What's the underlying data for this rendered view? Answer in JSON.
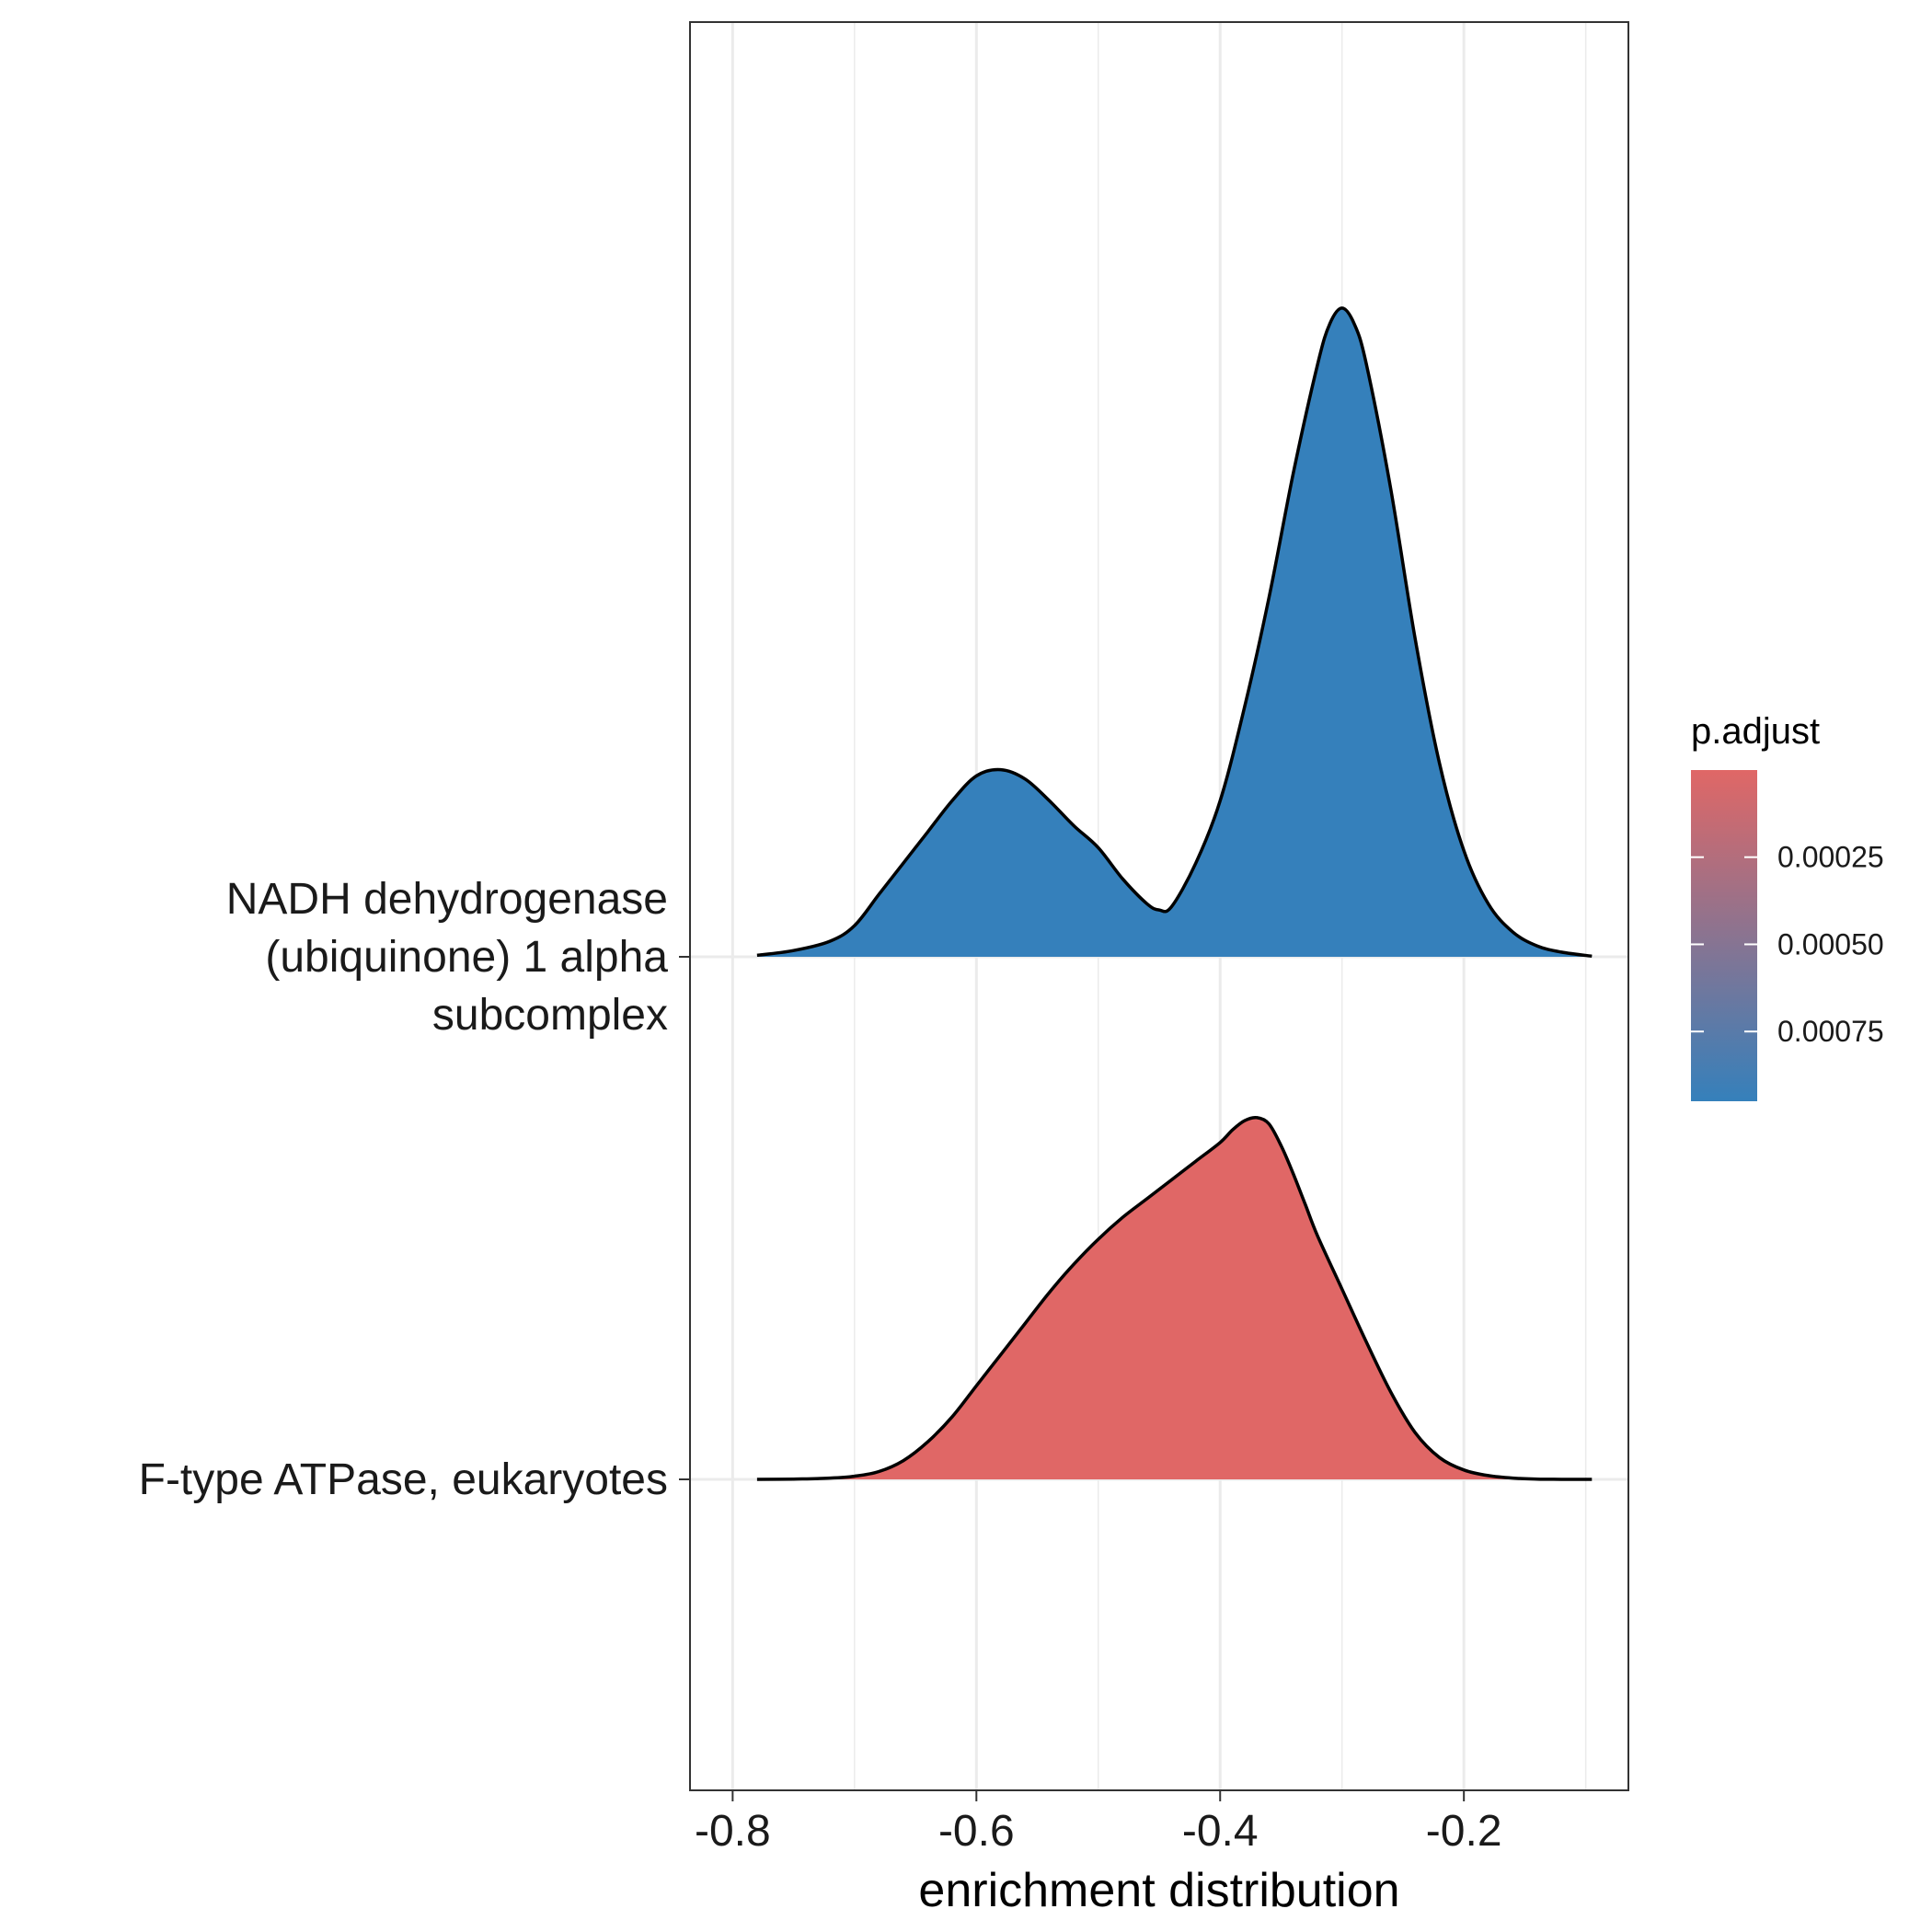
{
  "chart_data": {
    "type": "ridgeline",
    "title": "",
    "xlabel": "enrichment distribution",
    "ylabel": "",
    "xlim": [
      -0.835,
      -0.065
    ],
    "x_ticks": [
      -0.8,
      -0.6,
      -0.4,
      -0.2
    ],
    "x_tick_labels": [
      "-0.8",
      "-0.6",
      "-0.4",
      "-0.2"
    ],
    "x_minor_ticks": [
      -0.7,
      -0.5,
      -0.3,
      -0.1
    ],
    "grid": true,
    "categories": [
      "F-type ATPase, eukaryotes",
      "NADH dehydrogenase (ubiquinone) 1 alpha subcomplex"
    ],
    "category_label_lines": [
      [
        "F-type ATPase, eukaryotes"
      ],
      [
        "NADH dehydrogenase",
        "(ubiquinone) 1 alpha",
        "subcomplex"
      ]
    ],
    "series": [
      {
        "name": "F-type ATPase, eukaryotes",
        "p_adjust": 1e-07,
        "fill": "#E06766",
        "x": [
          -0.78,
          -0.75,
          -0.72,
          -0.7,
          -0.68,
          -0.66,
          -0.64,
          -0.62,
          -0.6,
          -0.58,
          -0.56,
          -0.54,
          -0.52,
          -0.5,
          -0.48,
          -0.46,
          -0.44,
          -0.42,
          -0.4,
          -0.39,
          -0.38,
          -0.37,
          -0.36,
          -0.35,
          -0.34,
          -0.33,
          -0.32,
          -0.3,
          -0.28,
          -0.26,
          -0.24,
          -0.22,
          -0.2,
          -0.18,
          -0.16,
          -0.14,
          -0.12,
          -0.095
        ],
        "density": [
          0.0,
          0.001,
          0.004,
          0.01,
          0.025,
          0.06,
          0.12,
          0.2,
          0.3,
          0.4,
          0.5,
          0.6,
          0.69,
          0.77,
          0.84,
          0.9,
          0.96,
          1.02,
          1.08,
          1.12,
          1.15,
          1.16,
          1.14,
          1.07,
          0.98,
          0.88,
          0.78,
          0.61,
          0.44,
          0.28,
          0.15,
          0.07,
          0.03,
          0.012,
          0.004,
          0.001,
          0.0,
          0.0
        ]
      },
      {
        "name": "NADH dehydrogenase (ubiquinone) 1 alpha subcomplex",
        "p_adjust": 0.00095,
        "fill": "#3580BB",
        "x": [
          -0.78,
          -0.75,
          -0.72,
          -0.7,
          -0.68,
          -0.66,
          -0.64,
          -0.62,
          -0.6,
          -0.58,
          -0.56,
          -0.54,
          -0.52,
          -0.5,
          -0.48,
          -0.46,
          -0.45,
          -0.44,
          -0.42,
          -0.4,
          -0.38,
          -0.36,
          -0.34,
          -0.32,
          -0.31,
          -0.3,
          -0.29,
          -0.28,
          -0.26,
          -0.24,
          -0.22,
          -0.2,
          -0.18,
          -0.16,
          -0.14,
          -0.12,
          -0.095
        ],
        "density": [
          0.005,
          0.02,
          0.05,
          0.1,
          0.2,
          0.3,
          0.4,
          0.5,
          0.58,
          0.6,
          0.57,
          0.5,
          0.42,
          0.35,
          0.25,
          0.17,
          0.15,
          0.16,
          0.3,
          0.5,
          0.8,
          1.15,
          1.55,
          1.9,
          2.03,
          2.08,
          2.03,
          1.9,
          1.5,
          1.02,
          0.62,
          0.34,
          0.17,
          0.08,
          0.035,
          0.015,
          0.002
        ]
      }
    ],
    "legend": {
      "title": "p.adjust",
      "placement": "right",
      "color_low": "#E06766",
      "color_high": "#3580BB",
      "range": [
        1e-07,
        0.00095
      ],
      "ticks": [
        0.00025,
        0.0005,
        0.00075
      ],
      "tick_labels": [
        "0.00025",
        "0.00050",
        "0.00075"
      ]
    }
  }
}
